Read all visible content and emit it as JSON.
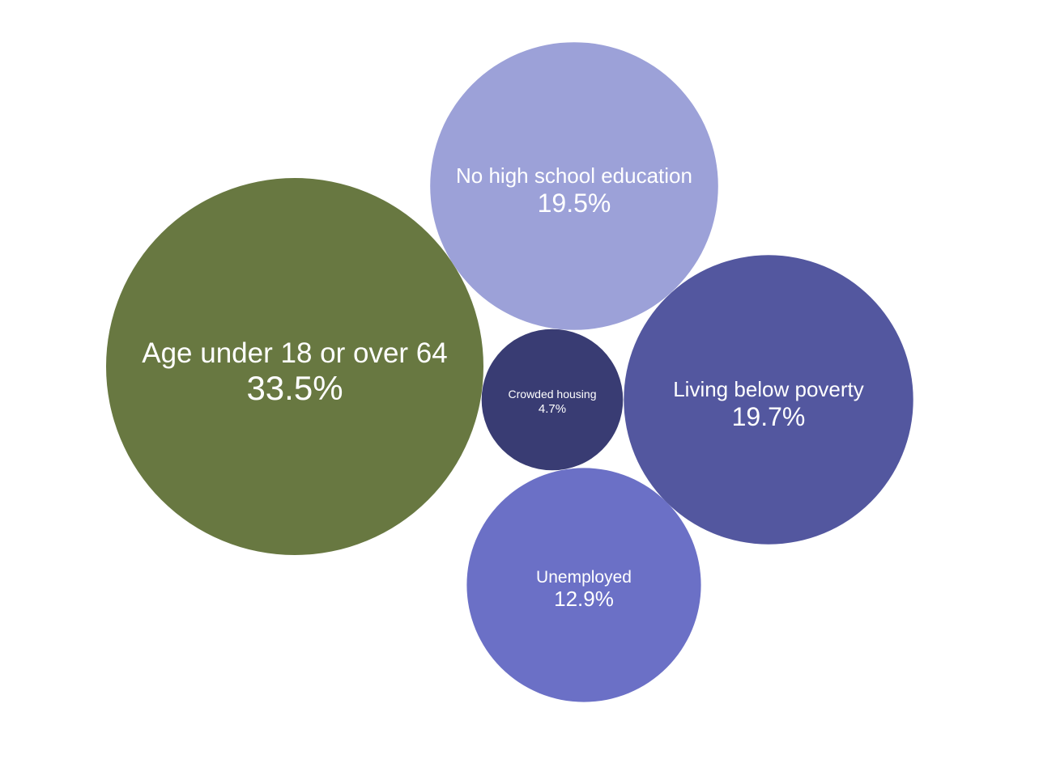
{
  "chart_data": {
    "type": "bubble",
    "title": "",
    "legend": "none",
    "series": [
      {
        "name": "Age under 18 or over 64",
        "value": 33.5,
        "value_label": "33.5%",
        "color": "#687841"
      },
      {
        "name": "No high school education",
        "value": 19.5,
        "value_label": "19.5%",
        "color": "#9ca1d8"
      },
      {
        "name": "Living below poverty",
        "value": 19.7,
        "value_label": "19.7%",
        "color": "#53579f"
      },
      {
        "name": "Unemployed",
        "value": 12.9,
        "value_label": "12.9%",
        "color": "#6b70c6"
      },
      {
        "name": "Crowded housing",
        "value": 4.7,
        "value_label": "4.7%",
        "color": "#393c73"
      }
    ]
  }
}
